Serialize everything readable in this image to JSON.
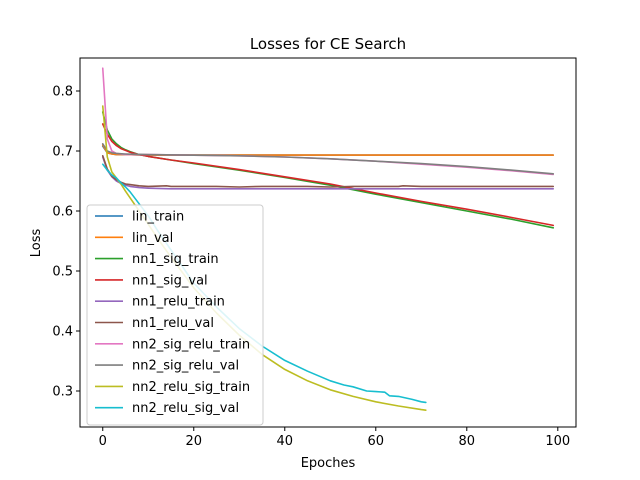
{
  "chart_data": {
    "type": "line",
    "title": "Losses for CE Search",
    "xlabel": "Epoches",
    "ylabel": "Loss",
    "xlim": [
      -5,
      104
    ],
    "ylim": [
      0.24,
      0.855
    ],
    "xticks": [
      0,
      20,
      40,
      60,
      80,
      100
    ],
    "yticks": [
      0.3,
      0.4,
      0.5,
      0.6,
      0.7,
      0.8
    ],
    "xtick_labels": [
      "0",
      "20",
      "40",
      "60",
      "80",
      "100"
    ],
    "ytick_labels": [
      "0.3",
      "0.4",
      "0.5",
      "0.6",
      "0.7",
      "0.8"
    ],
    "grid": false,
    "legend_position": "center-left",
    "series": [
      {
        "name": "lin_train",
        "color": "#1f77b4",
        "x": [
          0,
          1,
          2,
          3,
          5,
          8,
          10,
          20,
          40,
          60,
          80,
          99
        ],
        "y": [
          0.708,
          0.697,
          0.695,
          0.694,
          0.694,
          0.6935,
          0.6933,
          0.6932,
          0.6932,
          0.6932,
          0.6932,
          0.6932
        ]
      },
      {
        "name": "lin_val",
        "color": "#ff7f0e",
        "x": [
          0,
          1,
          2,
          3,
          5,
          8,
          10,
          20,
          40,
          60,
          80,
          99
        ],
        "y": [
          0.71,
          0.697,
          0.695,
          0.694,
          0.694,
          0.6935,
          0.6933,
          0.6932,
          0.6932,
          0.6932,
          0.6932,
          0.6932
        ]
      },
      {
        "name": "nn1_sig_train",
        "color": "#2ca02c",
        "x": [
          0,
          1,
          2,
          3,
          4,
          5,
          6,
          8,
          10,
          15,
          20,
          30,
          40,
          50,
          60,
          70,
          80,
          90,
          99
        ],
        "y": [
          0.765,
          0.735,
          0.72,
          0.712,
          0.706,
          0.702,
          0.699,
          0.694,
          0.691,
          0.685,
          0.679,
          0.668,
          0.656,
          0.643,
          0.628,
          0.614,
          0.6,
          0.586,
          0.572
        ]
      },
      {
        "name": "nn1_sig_val",
        "color": "#d62728",
        "x": [
          0,
          1,
          2,
          3,
          4,
          5,
          6,
          8,
          10,
          15,
          20,
          30,
          40,
          50,
          60,
          70,
          80,
          90,
          99
        ],
        "y": [
          0.745,
          0.728,
          0.716,
          0.709,
          0.704,
          0.701,
          0.698,
          0.694,
          0.691,
          0.685,
          0.68,
          0.669,
          0.657,
          0.645,
          0.63,
          0.616,
          0.603,
          0.589,
          0.576
        ]
      },
      {
        "name": "nn1_relu_train",
        "color": "#9467bd",
        "x": [
          0,
          1,
          2,
          3,
          4,
          5,
          6,
          8,
          10,
          15,
          20,
          40,
          60,
          80,
          99
        ],
        "y": [
          0.69,
          0.668,
          0.657,
          0.65,
          0.646,
          0.643,
          0.641,
          0.639,
          0.638,
          0.637,
          0.637,
          0.637,
          0.637,
          0.637,
          0.637
        ]
      },
      {
        "name": "nn1_relu_val",
        "color": "#8c564b",
        "x": [
          0,
          1,
          2,
          3,
          4,
          5,
          6,
          8,
          10,
          14,
          15,
          20,
          25,
          30,
          35,
          40,
          45,
          50,
          55,
          60,
          65,
          66,
          70,
          75,
          80,
          85,
          90,
          95,
          99
        ],
        "y": [
          0.692,
          0.67,
          0.658,
          0.652,
          0.648,
          0.645,
          0.644,
          0.642,
          0.641,
          0.642,
          0.641,
          0.641,
          0.641,
          0.64,
          0.641,
          0.641,
          0.641,
          0.64,
          0.641,
          0.641,
          0.641,
          0.642,
          0.641,
          0.641,
          0.641,
          0.641,
          0.641,
          0.641,
          0.641
        ]
      },
      {
        "name": "nn2_sig_relu_train",
        "color": "#e377c2",
        "x": [
          0,
          1,
          2,
          3,
          5,
          10,
          20,
          30,
          40,
          50,
          60,
          70,
          80,
          90,
          99
        ],
        "y": [
          0.838,
          0.72,
          0.7,
          0.696,
          0.694,
          0.694,
          0.693,
          0.692,
          0.69,
          0.687,
          0.683,
          0.678,
          0.673,
          0.667,
          0.661
        ]
      },
      {
        "name": "nn2_sig_relu_val",
        "color": "#7f7f7f",
        "x": [
          0,
          1,
          2,
          3,
          5,
          10,
          20,
          30,
          40,
          50,
          60,
          70,
          80,
          90,
          99
        ],
        "y": [
          0.712,
          0.7,
          0.697,
          0.696,
          0.695,
          0.694,
          0.693,
          0.692,
          0.69,
          0.687,
          0.683,
          0.679,
          0.674,
          0.668,
          0.662
        ]
      },
      {
        "name": "nn2_relu_sig_train",
        "color": "#bcbd22",
        "x": [
          0,
          1,
          2,
          3,
          4,
          5,
          6,
          8,
          10,
          12,
          15,
          20,
          25,
          30,
          35,
          40,
          45,
          50,
          55,
          60,
          65,
          70,
          71
        ],
        "y": [
          0.775,
          0.69,
          0.665,
          0.655,
          0.645,
          0.633,
          0.622,
          0.6,
          0.578,
          0.555,
          0.523,
          0.472,
          0.43,
          0.393,
          0.361,
          0.336,
          0.317,
          0.302,
          0.291,
          0.282,
          0.275,
          0.269,
          0.268
        ]
      },
      {
        "name": "nn2_relu_sig_val",
        "color": "#17becf",
        "x": [
          0,
          1,
          2,
          3,
          4,
          5,
          6,
          8,
          10,
          12,
          15,
          20,
          25,
          30,
          35,
          40,
          45,
          50,
          53,
          55,
          58,
          60,
          62,
          63,
          65,
          68,
          70,
          71
        ],
        "y": [
          0.678,
          0.668,
          0.66,
          0.655,
          0.647,
          0.64,
          0.632,
          0.612,
          0.592,
          0.568,
          0.535,
          0.48,
          0.44,
          0.404,
          0.375,
          0.351,
          0.333,
          0.317,
          0.31,
          0.307,
          0.3,
          0.299,
          0.298,
          0.292,
          0.291,
          0.286,
          0.282,
          0.281
        ]
      }
    ]
  }
}
